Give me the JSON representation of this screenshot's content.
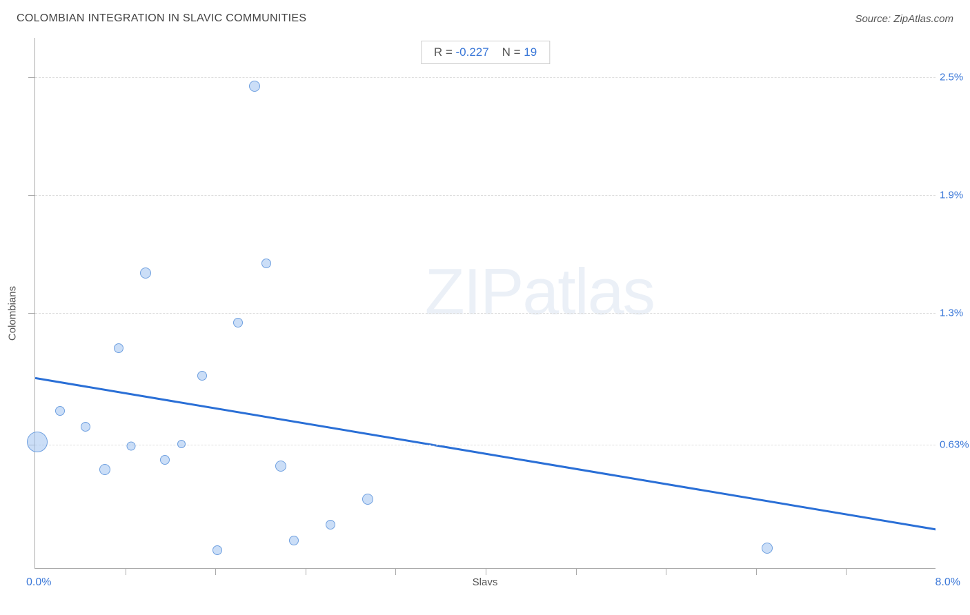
{
  "title": "COLOMBIAN INTEGRATION IN SLAVIC COMMUNITIES",
  "source": "Source: ZipAtlas.com",
  "stats": {
    "r_label": "R =",
    "r_value": "-0.227",
    "n_label": "N =",
    "n_value": "19"
  },
  "x_axis": {
    "label": "Slavs",
    "min_label": "0.0%",
    "max_label": "8.0%",
    "min": 0.0,
    "max": 8.0
  },
  "y_axis": {
    "label": "Colombians",
    "min": 0.0,
    "max": 2.7,
    "gridlines": [
      {
        "value": 0.63,
        "label": "0.63%"
      },
      {
        "value": 1.3,
        "label": "1.3%"
      },
      {
        "value": 1.9,
        "label": "1.9%"
      },
      {
        "value": 2.5,
        "label": "2.5%"
      }
    ]
  },
  "xticks": [
    0.8,
    1.6,
    2.4,
    3.2,
    4.0,
    4.8,
    5.6,
    6.4,
    7.2
  ],
  "points": [
    {
      "x": 0.02,
      "y": 0.64,
      "r": 30
    },
    {
      "x": 0.22,
      "y": 0.8,
      "r": 14
    },
    {
      "x": 0.45,
      "y": 0.72,
      "r": 14
    },
    {
      "x": 0.62,
      "y": 0.5,
      "r": 16
    },
    {
      "x": 0.74,
      "y": 1.12,
      "r": 14
    },
    {
      "x": 0.85,
      "y": 0.62,
      "r": 13
    },
    {
      "x": 0.98,
      "y": 1.5,
      "r": 16
    },
    {
      "x": 1.15,
      "y": 0.55,
      "r": 14
    },
    {
      "x": 1.3,
      "y": 0.63,
      "r": 12
    },
    {
      "x": 1.48,
      "y": 0.98,
      "r": 14
    },
    {
      "x": 1.62,
      "y": 0.09,
      "r": 14
    },
    {
      "x": 1.8,
      "y": 1.25,
      "r": 14
    },
    {
      "x": 1.95,
      "y": 2.45,
      "r": 16
    },
    {
      "x": 2.05,
      "y": 1.55,
      "r": 14
    },
    {
      "x": 2.18,
      "y": 0.52,
      "r": 16
    },
    {
      "x": 2.3,
      "y": 0.14,
      "r": 14
    },
    {
      "x": 2.62,
      "y": 0.22,
      "r": 14
    },
    {
      "x": 2.95,
      "y": 0.35,
      "r": 16
    },
    {
      "x": 6.5,
      "y": 0.1,
      "r": 16
    }
  ],
  "trend": {
    "y_at_xmin": 0.97,
    "y_at_xmax": 0.2,
    "color": "#2a6fd6",
    "width": 3
  },
  "colors": {
    "bubble_fill": "rgba(160,195,240,0.55)",
    "bubble_stroke": "#6fa0e0",
    "axis_value": "#3b78d8",
    "grid": "#ddd",
    "axis": "#aaa",
    "text": "#555",
    "background": "#ffffff"
  },
  "watermark": {
    "strong": "ZIP",
    "light": "atlas"
  }
}
